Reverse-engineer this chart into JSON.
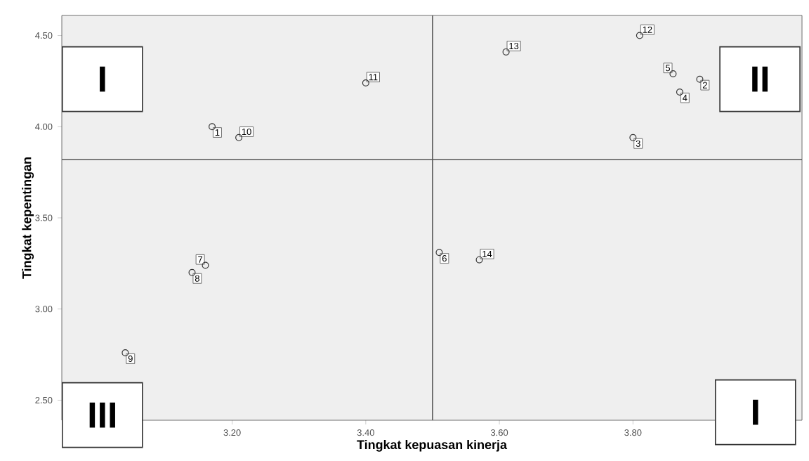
{
  "chart_data": {
    "type": "scatter",
    "xlabel": "Tingkat kepuasan kinerja",
    "ylabel": "Tingkat kepentingan",
    "x": [
      3.17,
      3.9,
      3.8,
      3.87,
      3.86,
      3.51,
      3.16,
      3.14,
      3.04,
      3.21,
      3.4,
      3.81,
      3.61,
      3.57
    ],
    "series": [
      {
        "color": "#333333",
        "values": [
          4.0,
          4.26,
          3.94,
          4.19,
          4.29,
          3.31,
          3.24,
          3.2,
          2.76,
          3.94,
          4.24,
          4.5,
          4.41,
          3.27
        ]
      }
    ],
    "marker": "circle",
    "xlim": [
      2.945,
      4.053
    ],
    "ylim": [
      2.39,
      4.61
    ],
    "xticks": [
      {
        "value": 3.2,
        "label": "3.20"
      },
      {
        "value": 3.4,
        "label": "3.40"
      },
      {
        "value": 3.6,
        "label": "3.60"
      },
      {
        "value": 3.8,
        "label": "3.80"
      }
    ],
    "yticks": [
      {
        "value": 2.5,
        "label": "2.50"
      },
      {
        "value": 3.0,
        "label": "3.00"
      },
      {
        "value": 3.5,
        "label": "3.50"
      },
      {
        "value": 4.0,
        "label": "4.00"
      },
      {
        "value": 4.5,
        "label": "4.50"
      }
    ],
    "ref_lines": [
      {
        "axis": "x",
        "value": 3.5,
        "color": "#555555"
      },
      {
        "axis": "y",
        "value": 3.82,
        "color": "#555555"
      }
    ],
    "annotations": [
      {
        "text": "1",
        "x": 3.17,
        "y": 4.0
      },
      {
        "text": "2",
        "x": 3.9,
        "y": 4.26
      },
      {
        "text": "3",
        "x": 3.8,
        "y": 3.94
      },
      {
        "text": "4",
        "x": 3.87,
        "y": 4.19
      },
      {
        "text": "5",
        "x": 3.86,
        "y": 4.29
      },
      {
        "text": "6",
        "x": 3.51,
        "y": 3.31
      },
      {
        "text": "7",
        "x": 3.16,
        "y": 3.24
      },
      {
        "text": "8",
        "x": 3.14,
        "y": 3.2
      },
      {
        "text": "9",
        "x": 3.04,
        "y": 2.76
      },
      {
        "text": "10",
        "x": 3.21,
        "y": 3.94
      },
      {
        "text": "11",
        "x": 3.4,
        "y": 4.24
      },
      {
        "text": "12",
        "x": 3.81,
        "y": 4.5
      },
      {
        "text": "13",
        "x": 3.61,
        "y": 4.41
      },
      {
        "text": "14",
        "x": 3.57,
        "y": 3.27
      },
      "I",
      "II",
      "III",
      "I"
    ],
    "grid": false
  }
}
